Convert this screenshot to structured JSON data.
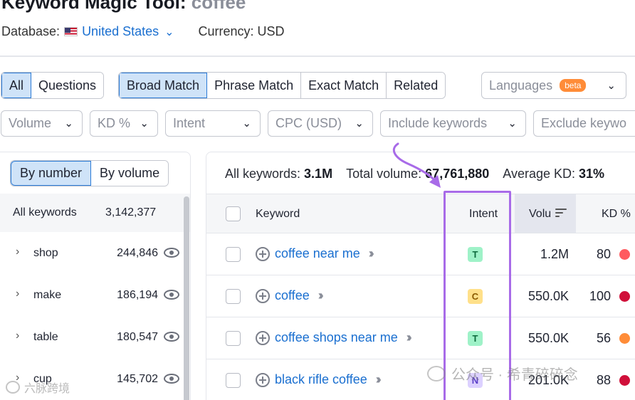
{
  "header": {
    "title_prefix": "Keyword Magic Tool:",
    "title_keyword": "coffee",
    "database_label": "Database:",
    "database_value": "United States",
    "currency": "Currency: USD"
  },
  "toolbar": {
    "question_group": [
      {
        "label": "All",
        "active": true
      },
      {
        "label": "Questions",
        "active": false
      }
    ],
    "match_group": [
      {
        "label": "Broad Match",
        "active": true
      },
      {
        "label": "Phrase Match",
        "active": false
      },
      {
        "label": "Exact Match",
        "active": false
      },
      {
        "label": "Related",
        "active": false
      }
    ],
    "languages": {
      "label": "Languages",
      "badge": "beta"
    }
  },
  "filters": [
    {
      "label": "Volume"
    },
    {
      "label": "KD %"
    },
    {
      "label": "Intent"
    },
    {
      "label": "CPC (USD)"
    },
    {
      "label": "Include keywords"
    },
    {
      "label": "Exclude keywo"
    }
  ],
  "sidebar": {
    "tabs": [
      {
        "label": "By number",
        "active": true
      },
      {
        "label": "By volume",
        "active": false
      }
    ],
    "all_keywords": {
      "label": "All keywords",
      "count": "3,142,377"
    },
    "groups": [
      {
        "name": "shop",
        "count": "244,846"
      },
      {
        "name": "make",
        "count": "186,194"
      },
      {
        "name": "table",
        "count": "180,547"
      },
      {
        "name": "cup",
        "count": "145,702"
      }
    ]
  },
  "summary": {
    "all_keywords_label": "All keywords:",
    "all_keywords_value": "3.1M",
    "total_volume_label": "Total volume:",
    "total_volume_value": "67,761,880",
    "avg_kd_label": "Average KD:",
    "avg_kd_value": "31%"
  },
  "table": {
    "columns": {
      "keyword": "Keyword",
      "intent": "Intent",
      "volume": "Volu",
      "kd": "KD %"
    },
    "rows": [
      {
        "keyword": "coffee near me",
        "intent": "T",
        "volume": "1.2M",
        "kd": "80",
        "kd_color": "#ff5a5f"
      },
      {
        "keyword": "coffee",
        "intent": "C",
        "volume": "550.0K",
        "kd": "100",
        "kd_color": "#d0103a"
      },
      {
        "keyword": "coffee shops near me",
        "intent": "T",
        "volume": "550.0K",
        "kd": "56",
        "kd_color": "#ff8c38"
      },
      {
        "keyword": "black rifle coffee",
        "intent": "N",
        "volume": "201.0K",
        "kd": "88",
        "kd_color": "#d0103a"
      }
    ]
  },
  "intent_colors": {
    "T": {
      "bg": "#9ff2c8",
      "fg": "#0e6b3e"
    },
    "C": {
      "bg": "#ffe08a",
      "fg": "#8a5a00"
    },
    "N": {
      "bg": "#dcd1ff",
      "fg": "#5b3fc9"
    }
  },
  "accent": "#2b7bd6",
  "annotation_color": "#a86be8",
  "watermarks": {
    "right": "公众号 · 希青碎碎念",
    "left": "六脉跨境"
  }
}
